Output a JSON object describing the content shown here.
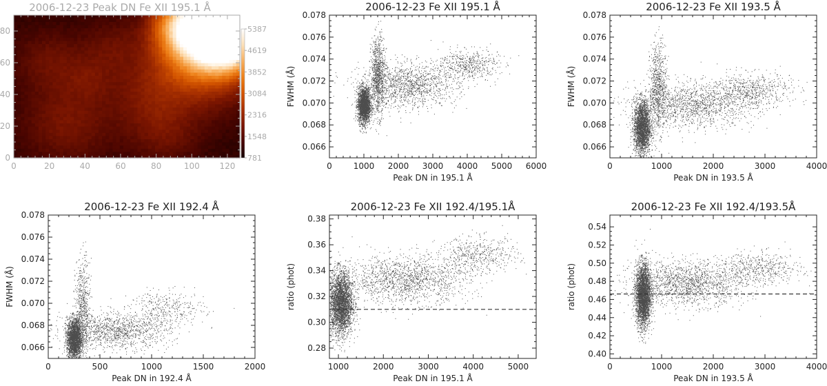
{
  "chart_data": [
    {
      "id": "map",
      "type": "heatmap",
      "title": "2006-12-23 Peak DN Fe XII 195.1 Å",
      "xlim": [
        0,
        127
      ],
      "ylim": [
        0,
        90
      ],
      "xticks": [
        0,
        20,
        40,
        60,
        80,
        100,
        120
      ],
      "yticks": [
        0,
        20,
        40,
        60,
        80
      ],
      "colorbar": {
        "ticks": [
          781,
          1548,
          2316,
          3084,
          3852,
          4619,
          5387
        ],
        "range": [
          781,
          5387
        ]
      },
      "colormap": [
        "#140000",
        "#4a0500",
        "#7a1500",
        "#a83000",
        "#d45500",
        "#ee8018",
        "#f8b060",
        "#fde0b8",
        "#ffffff"
      ],
      "text_color": "#aaaaaa"
    },
    {
      "id": "s1",
      "type": "scatter",
      "title": "2006-12-23 Fe XII 195.1 Å",
      "xlabel": "Peak DN in 195.1 Å",
      "ylabel": "FWHM (Å)",
      "xlim": [
        0,
        6000
      ],
      "ylim": [
        0.065,
        0.078
      ],
      "xticks": [
        0,
        1000,
        2000,
        3000,
        4000,
        5000,
        6000
      ],
      "yticks": [
        0.066,
        0.068,
        0.07,
        0.072,
        0.074,
        0.076,
        0.078
      ],
      "ytick_decimals": 3,
      "clusters": [
        {
          "n": 2400,
          "x": [
            1000,
            90
          ],
          "y": [
            0.0698,
            0.0008
          ]
        },
        {
          "n": 900,
          "x": [
            1400,
            100
          ],
          "y": [
            0.0725,
            0.0018
          ]
        },
        {
          "n": 1300,
          "x": [
            2300,
            700
          ],
          "y": [
            0.0716,
            0.001
          ]
        },
        {
          "n": 500,
          "x": [
            4000,
            450
          ],
          "y": [
            0.0735,
            0.0007
          ]
        }
      ]
    },
    {
      "id": "s2",
      "type": "scatter",
      "title": "2006-12-23 Fe XII 193.5 Å",
      "xlabel": "Peak DN in 193.5 Å",
      "ylabel": "FWHM (Å)",
      "xlim": [
        0,
        4000
      ],
      "ylim": [
        0.065,
        0.078
      ],
      "xticks": [
        0,
        1000,
        2000,
        3000,
        4000
      ],
      "yticks": [
        0.066,
        0.068,
        0.07,
        0.072,
        0.074,
        0.076,
        0.078
      ],
      "ytick_decimals": 3,
      "clusters": [
        {
          "n": 2600,
          "x": [
            620,
            80
          ],
          "y": [
            0.0678,
            0.0012
          ]
        },
        {
          "n": 700,
          "x": [
            930,
            80
          ],
          "y": [
            0.0715,
            0.002
          ]
        },
        {
          "n": 1400,
          "x": [
            1600,
            600
          ],
          "y": [
            0.0698,
            0.001
          ]
        },
        {
          "n": 600,
          "x": [
            2700,
            400
          ],
          "y": [
            0.0712,
            0.0008
          ]
        }
      ]
    },
    {
      "id": "s3",
      "type": "scatter",
      "title": "2006-12-23 Fe XII 192.4 Å",
      "xlabel": "Peak DN in 192.4 Å",
      "ylabel": "FWHM (Å)",
      "xlim": [
        0,
        2000
      ],
      "ylim": [
        0.065,
        0.078
      ],
      "xticks": [
        0,
        500,
        1000,
        1500,
        2000
      ],
      "yticks": [
        0.066,
        0.068,
        0.07,
        0.072,
        0.074,
        0.076,
        0.078
      ],
      "ytick_decimals": 3,
      "clusters": [
        {
          "n": 2400,
          "x": [
            250,
            35
          ],
          "y": [
            0.0668,
            0.0009
          ]
        },
        {
          "n": 600,
          "x": [
            330,
            35
          ],
          "y": [
            0.0695,
            0.0022
          ]
        },
        {
          "n": 1200,
          "x": [
            650,
            260
          ],
          "y": [
            0.0675,
            0.0008
          ]
        },
        {
          "n": 350,
          "x": [
            1150,
            180
          ],
          "y": [
            0.0695,
            0.0008
          ]
        }
      ]
    },
    {
      "id": "r1",
      "type": "scatter",
      "title": "2006-12-23 Fe XII 192.4/195.1Å",
      "xlabel": "Peak DN in 195.1 Å",
      "ylabel": "ratio (phot)",
      "xlim": [
        800,
        5400
      ],
      "ylim": [
        0.272,
        0.383
      ],
      "xticks": [
        1000,
        2000,
        3000,
        4000,
        5000
      ],
      "yticks": [
        0.28,
        0.3,
        0.32,
        0.34,
        0.36,
        0.38
      ],
      "ytick_decimals": 2,
      "hline": 0.31,
      "clusters": [
        {
          "n": 3200,
          "x": [
            1050,
            130
          ],
          "y": [
            0.315,
            0.012
          ]
        },
        {
          "n": 1500,
          "x": [
            2500,
            700
          ],
          "y": [
            0.333,
            0.009
          ]
        },
        {
          "n": 500,
          "x": [
            4100,
            450
          ],
          "y": [
            0.352,
            0.007
          ]
        }
      ]
    },
    {
      "id": "r2",
      "type": "scatter",
      "title": "2006-12-23 Fe XII 192.4/193.5Å",
      "xlabel": "Peak DN in 193.5 Å",
      "ylabel": "ratio (phot)",
      "xlim": [
        0,
        4000
      ],
      "ylim": [
        0.395,
        0.553
      ],
      "xticks": [
        0,
        1000,
        2000,
        3000,
        4000
      ],
      "yticks": [
        0.4,
        0.42,
        0.44,
        0.46,
        0.48,
        0.5,
        0.52,
        0.54
      ],
      "ytick_decimals": 2,
      "hline": 0.466,
      "clusters": [
        {
          "n": 3300,
          "x": [
            640,
            70
          ],
          "y": [
            0.465,
            0.017
          ]
        },
        {
          "n": 1500,
          "x": [
            1500,
            550
          ],
          "y": [
            0.478,
            0.012
          ]
        },
        {
          "n": 500,
          "x": [
            2900,
            400
          ],
          "y": [
            0.494,
            0.009
          ]
        }
      ]
    }
  ]
}
